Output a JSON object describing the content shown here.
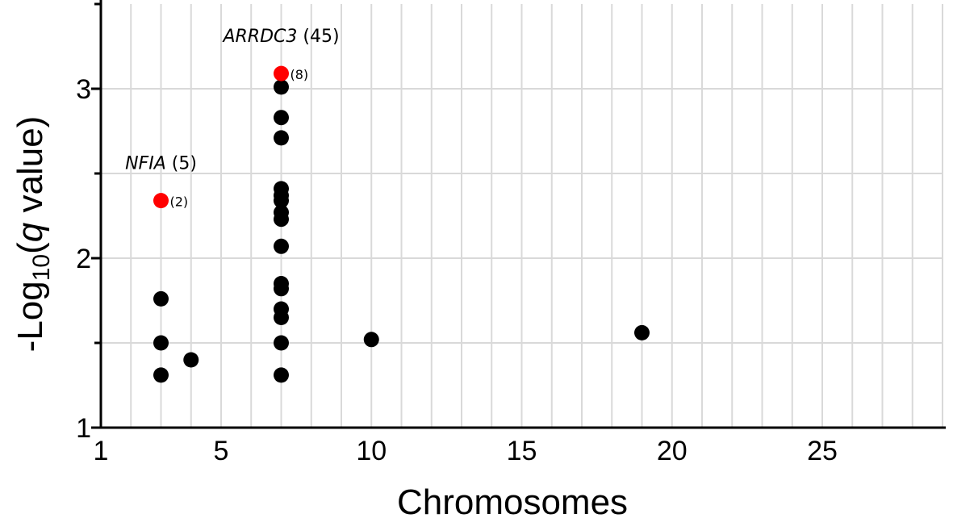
{
  "chart_data": {
    "type": "scatter",
    "title": "",
    "xlabel": "Chromosomes",
    "ylabel": {
      "prefix": "-Log",
      "subscript": "10",
      "open": "(",
      "italic": "q",
      "rest": " value)"
    },
    "xlim": [
      1,
      29
    ],
    "ylim": [
      1,
      3.5
    ],
    "x_ticks": [
      1,
      5,
      10,
      15,
      20,
      25
    ],
    "y_ticks": [
      1,
      2,
      3
    ],
    "x_grid_step": 1,
    "y_grid_step": 0.5,
    "grid": true,
    "colors": {
      "normal": "#000000",
      "highlight": "#ff0000",
      "grid": "#d9d9d9"
    },
    "points": [
      {
        "x": 3,
        "y": 1.31,
        "highlight": false
      },
      {
        "x": 3,
        "y": 1.5,
        "highlight": false
      },
      {
        "x": 3,
        "y": 1.76,
        "highlight": false
      },
      {
        "x": 3,
        "y": 2.34,
        "highlight": true
      },
      {
        "x": 4,
        "y": 1.4,
        "highlight": false
      },
      {
        "x": 7,
        "y": 1.31,
        "highlight": false
      },
      {
        "x": 7,
        "y": 1.5,
        "highlight": false
      },
      {
        "x": 7,
        "y": 1.65,
        "highlight": false
      },
      {
        "x": 7,
        "y": 1.7,
        "highlight": false
      },
      {
        "x": 7,
        "y": 1.82,
        "highlight": false
      },
      {
        "x": 7,
        "y": 1.85,
        "highlight": false
      },
      {
        "x": 7,
        "y": 2.07,
        "highlight": false
      },
      {
        "x": 7,
        "y": 2.23,
        "highlight": false
      },
      {
        "x": 7,
        "y": 2.27,
        "highlight": false
      },
      {
        "x": 7,
        "y": 2.34,
        "highlight": false
      },
      {
        "x": 7,
        "y": 2.37,
        "highlight": false
      },
      {
        "x": 7,
        "y": 2.41,
        "highlight": false
      },
      {
        "x": 7,
        "y": 2.71,
        "highlight": false
      },
      {
        "x": 7,
        "y": 2.83,
        "highlight": false
      },
      {
        "x": 7,
        "y": 3.01,
        "highlight": false
      },
      {
        "x": 7,
        "y": 3.09,
        "highlight": true
      },
      {
        "x": 10,
        "y": 1.52,
        "highlight": false
      },
      {
        "x": 19,
        "y": 1.56,
        "highlight": false
      }
    ],
    "annotations": [
      {
        "gene": "NFIA",
        "gene_count": " (5)",
        "point_count": "(2)",
        "x": 3,
        "y": 2.34
      },
      {
        "gene": "ARRDC3",
        "gene_count": " (45)",
        "point_count": "(8)",
        "x": 7,
        "y": 3.09
      }
    ]
  }
}
